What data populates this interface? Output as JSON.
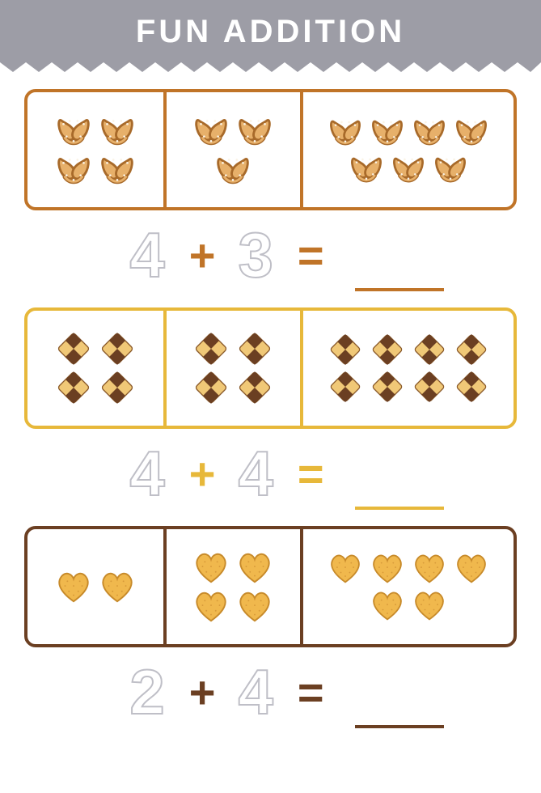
{
  "title": "FUN ADDITION",
  "header_bg": "#9d9da6",
  "header_text_color": "#ffffff",
  "number_outline_color": "#bfbfc7",
  "problems": [
    {
      "snack": "pretzel",
      "border_color": "#c07428",
      "op_color": "#c07428",
      "a": 4,
      "b": 3,
      "sum": 7,
      "snack_colors": {
        "fill": "#e7b06a",
        "stroke": "#a86a2a",
        "salt": "#faf3e6"
      }
    },
    {
      "snack": "checker-cookie",
      "border_color": "#e7b83a",
      "op_color": "#e7b83a",
      "a": 4,
      "b": 4,
      "sum": 8,
      "snack_colors": {
        "light": "#f0c877",
        "dark": "#6b3f22",
        "stroke": "#8a5a2a"
      }
    },
    {
      "snack": "heart-biscuit",
      "border_color": "#6b3f22",
      "op_color": "#6b3f22",
      "a": 2,
      "b": 4,
      "sum": 6,
      "snack_colors": {
        "fill": "#f0b84d",
        "stroke": "#c78a2a",
        "dot": "#d79a3a"
      }
    }
  ]
}
